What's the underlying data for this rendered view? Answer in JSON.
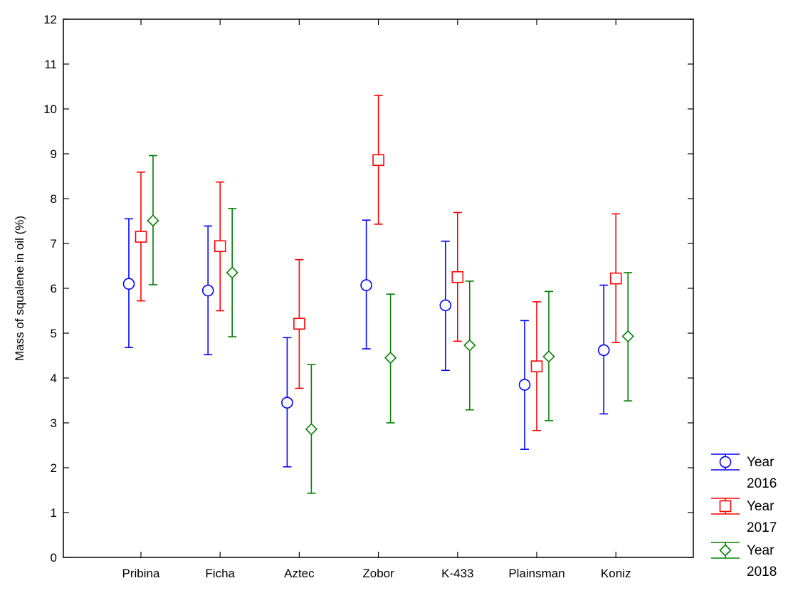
{
  "chart_data": {
    "type": "scatter",
    "ylabel": "Mass of squalene in oil (%)",
    "xlabel": "",
    "ylim": [
      0,
      12
    ],
    "yticks": [
      "0",
      "1",
      "2",
      "3",
      "4",
      "5",
      "6",
      "7",
      "8",
      "9",
      "10",
      "11",
      "12"
    ],
    "categories": [
      "Pribina",
      "Ficha",
      "Aztec",
      "Zobor",
      "K-433",
      "Plainsman",
      "Koniz"
    ],
    "grid": false,
    "legend_position": "bottom-right",
    "series": [
      {
        "name": "Year 2016",
        "legend_line1": "Year",
        "legend_line2": "2016",
        "color": "#0000ff",
        "marker": "circle",
        "values": [
          6.1,
          5.95,
          3.45,
          6.07,
          5.62,
          3.85,
          4.62
        ],
        "lower": [
          4.68,
          4.52,
          2.02,
          4.65,
          4.17,
          2.41,
          3.2
        ],
        "upper": [
          7.55,
          7.39,
          4.9,
          7.52,
          7.05,
          5.28,
          6.07
        ]
      },
      {
        "name": "Year 2017",
        "legend_line1": "Year",
        "legend_line2": "2017",
        "color": "#ff0000",
        "marker": "square",
        "values": [
          7.15,
          6.94,
          5.21,
          8.86,
          6.25,
          4.26,
          6.22
        ],
        "lower": [
          5.72,
          5.5,
          3.77,
          7.43,
          4.82,
          2.83,
          4.79
        ],
        "upper": [
          8.59,
          8.37,
          6.64,
          10.3,
          7.69,
          5.7,
          7.66
        ]
      },
      {
        "name": "Year 2018",
        "legend_line1": "Year",
        "legend_line2": "2018",
        "color": "#008000",
        "marker": "diamond",
        "values": [
          7.51,
          6.35,
          2.86,
          4.45,
          4.73,
          4.48,
          4.93
        ],
        "lower": [
          6.08,
          4.92,
          1.43,
          3.0,
          3.29,
          3.05,
          3.49
        ],
        "upper": [
          8.96,
          7.78,
          4.3,
          5.87,
          6.16,
          5.93,
          6.35
        ]
      }
    ]
  }
}
